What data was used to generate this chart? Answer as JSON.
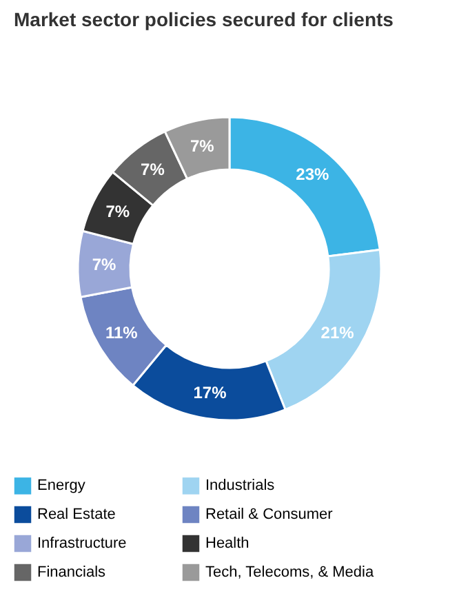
{
  "chart_data": {
    "type": "donut",
    "title": "Market sector policies secured for clients",
    "categories": [
      "Energy",
      "Industrials",
      "Real Estate",
      "Retail & Consumer",
      "Infrastructure",
      "Health",
      "Financials",
      "Tech, Telecoms, & Media"
    ],
    "values": [
      23,
      21,
      17,
      11,
      7,
      7,
      7,
      7
    ],
    "colors": [
      "#3cb4e5",
      "#9fd4f1",
      "#0b4c9c",
      "#6e84c2",
      "#99a7d7",
      "#333333",
      "#666666",
      "#9a9a9a"
    ],
    "value_labels": [
      "23%",
      "21%",
      "17%",
      "11%",
      "7%",
      "7%",
      "7%",
      "7%"
    ],
    "legend": "bottom"
  }
}
